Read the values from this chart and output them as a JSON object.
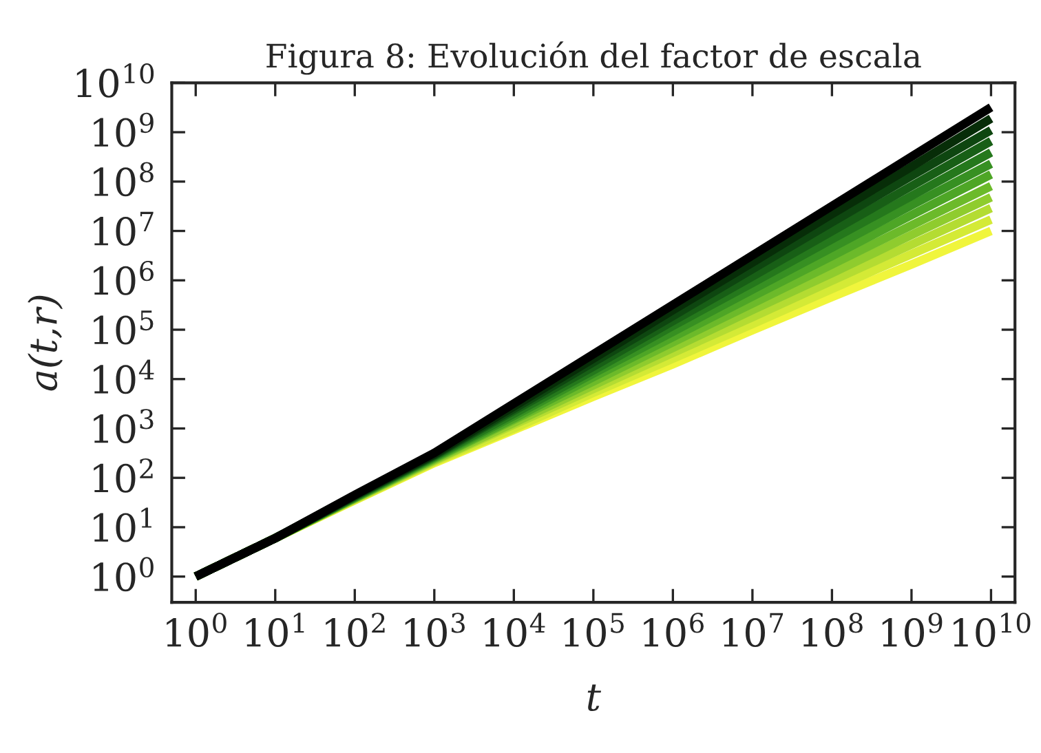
{
  "chart_data": {
    "type": "line",
    "title": "Figura 8: Evolución del factor de escala",
    "xlabel": "t",
    "ylabel": "a(t,r)",
    "log": "xy",
    "grid": false,
    "marker": "none",
    "line_style": "solid",
    "x": [
      1,
      10,
      100,
      1000,
      10000,
      100000,
      1000000,
      10000000,
      100000000,
      1000000000,
      10000000000
    ],
    "xlim": [
      0.5,
      20000000000
    ],
    "ylim": [
      0.3,
      10000000000
    ],
    "xticks": [
      {
        "value": 1,
        "label": "10$^{0}$"
      },
      {
        "value": 10,
        "label": "10$^{1}$"
      },
      {
        "value": 100,
        "label": "10$^{2}$"
      },
      {
        "value": 1000,
        "label": "10$^{3}$"
      },
      {
        "value": 10000,
        "label": "10$^{4}$"
      },
      {
        "value": 100000,
        "label": "10$^{5}$"
      },
      {
        "value": 1000000,
        "label": "10$^{6}$"
      },
      {
        "value": 10000000,
        "label": "10$^{7}$"
      },
      {
        "value": 100000000,
        "label": "10$^{8}$"
      },
      {
        "value": 1000000000,
        "label": "10$^{9}$"
      },
      {
        "value": 10000000000,
        "label": "10$^{10}$"
      }
    ],
    "yticks": [
      {
        "value": 1,
        "label": "10$^{0}$"
      },
      {
        "value": 10,
        "label": "10$^{1}$"
      },
      {
        "value": 100,
        "label": "10$^{2}$"
      },
      {
        "value": 1000,
        "label": "10$^{3}$"
      },
      {
        "value": 10000,
        "label": "10$^{4}$"
      },
      {
        "value": 100000,
        "label": "10$^{5}$"
      },
      {
        "value": 1000000,
        "label": "10$^{6}$"
      },
      {
        "value": 10000000,
        "label": "10$^{7}$"
      },
      {
        "value": 100000000,
        "label": "10$^{8}$"
      },
      {
        "value": 1000000000,
        "label": "10$^{9}$"
      },
      {
        "value": 10000000000,
        "label": "10$^{10}$"
      }
    ],
    "series": [
      {
        "color": "#f0f53c",
        "values": [
          1,
          6,
          35,
          200,
          930,
          4400,
          20000.0,
          98000.0,
          460000.0,
          2100000.0,
          10000000.0
        ]
      },
      {
        "color": "#d4ea36",
        "values": [
          1,
          6,
          36,
          210,
          1000,
          5300,
          26000.0,
          130000.0,
          670000.0,
          3400000.0,
          17000000.0
        ]
      },
      {
        "color": "#b4dc32",
        "values": [
          1,
          6,
          37,
          220,
          1200,
          6300,
          34000.0,
          180000.0,
          980000.0,
          5300000.0,
          29000000.0
        ]
      },
      {
        "color": "#8fcc2e",
        "values": [
          1,
          6,
          38,
          230,
          1300,
          7500,
          43000.0,
          250000.0,
          1400000.0,
          8300000.0,
          48000000.0
        ]
      },
      {
        "color": "#6cba2a",
        "values": [
          1,
          6,
          39,
          240,
          1500,
          9000,
          56000.0,
          340000.0,
          2100000.0,
          13000000.0,
          81000000.0
        ]
      },
      {
        "color": "#4ea626",
        "values": [
          1,
          6,
          39,
          250,
          1600,
          11000.0,
          71000.0,
          470000.0,
          3100000.0,
          21000000.0,
          140000000.0
        ]
      },
      {
        "color": "#379022",
        "values": [
          1,
          6,
          40,
          260,
          1800,
          13000.0,
          91000.0,
          650000.0,
          4600000.0,
          33000000.0,
          230000000.0
        ]
      },
      {
        "color": "#25781c",
        "values": [
          1,
          6,
          41,
          270,
          2000,
          15000.0,
          120000.0,
          890000.0,
          6800000.0,
          51000000.0,
          390000000.0
        ]
      },
      {
        "color": "#185f16",
        "values": [
          1,
          6,
          42,
          280,
          2300,
          18000.0,
          150000.0,
          1200000.0,
          9900000.0,
          81000000.0,
          660000000.0
        ]
      },
      {
        "color": "#0e4610",
        "values": [
          1,
          6,
          43,
          290,
          2500,
          22000.0,
          190000.0,
          1700000.0,
          15000000.0,
          130000000.0,
          1100000000.0
        ]
      },
      {
        "color": "#072d08",
        "values": [
          1,
          6,
          44,
          300,
          2800,
          26000.0,
          250000.0,
          2300000.0,
          22000000.0,
          200000000.0,
          1900000000.0
        ]
      },
      {
        "color": "#000000",
        "values": [
          1,
          6,
          45,
          320,
          3200,
          32000.0,
          320000.0,
          3200000.0,
          32000000.0,
          320000000.0,
          3200000000.0
        ]
      }
    ]
  }
}
